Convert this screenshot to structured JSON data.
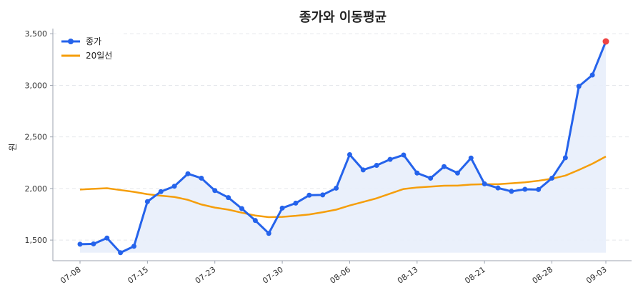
{
  "chart_data": {
    "type": "line",
    "title": "종가와 이동평균",
    "xlabel": "",
    "ylabel": "원",
    "ylim": [
      1300,
      3550
    ],
    "yticks": [
      1500,
      2000,
      2500,
      3000,
      3500
    ],
    "ytick_labels": [
      "1,500",
      "2,000",
      "2,500",
      "3,000",
      "3,500"
    ],
    "x_tick_labels": [
      "07-08",
      "07-15",
      "07-23",
      "07-30",
      "08-06",
      "08-13",
      "08-21",
      "08-28",
      "09-03"
    ],
    "x_tick_indices": [
      0,
      5,
      10,
      15,
      20,
      25,
      30,
      35,
      39
    ],
    "grid": true,
    "legend_position": "top-left",
    "colors": {
      "close": "#2563eb",
      "ma20": "#f59e0b",
      "fill": "#e8eefb",
      "last_point": "#ef4444",
      "grid": "#e5e7eb",
      "axis": "#9ca3af"
    },
    "series": [
      {
        "name": "종가",
        "values": [
          1460,
          1463,
          1520,
          1378,
          1440,
          1873,
          1970,
          2022,
          2143,
          2100,
          1980,
          1912,
          1805,
          1690,
          1565,
          1810,
          1858,
          1935,
          1938,
          2003,
          2328,
          2180,
          2224,
          2282,
          2325,
          2150,
          2100,
          2212,
          2150,
          2295,
          2045,
          2005,
          1972,
          1992,
          1990,
          2100,
          2298,
          2990,
          3100,
          3425
        ]
      },
      {
        "name": "20일선",
        "values": [
          1990,
          1997,
          2003,
          1985,
          1967,
          1945,
          1930,
          1918,
          1890,
          1845,
          1815,
          1795,
          1765,
          1738,
          1722,
          1725,
          1735,
          1748,
          1770,
          1795,
          1835,
          1870,
          1905,
          1950,
          1995,
          2010,
          2018,
          2027,
          2028,
          2038,
          2042,
          2042,
          2050,
          2060,
          2075,
          2095,
          2125,
          2180,
          2240,
          2310
        ]
      }
    ]
  }
}
